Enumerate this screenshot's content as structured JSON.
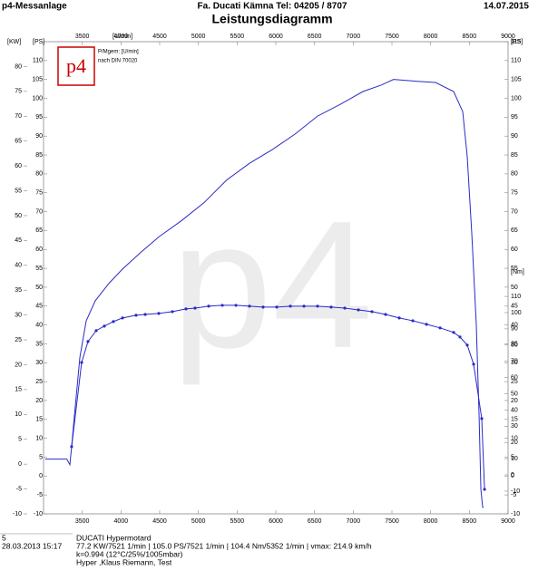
{
  "header": {
    "left": "p4-Messanlage",
    "center": "Fa. Ducati Kämna Tel: 04205 / 8707",
    "right": "14.07.2015"
  },
  "chart_data": {
    "type": "line",
    "title": "Leistungsdiagramm",
    "logo": "p4",
    "watermark": "p4",
    "legend_lines": [
      "P/Mgem: [U/min]",
      "nach DIN 70020"
    ],
    "xlabel": "[U/min]",
    "xlim": [
      3000,
      9000
    ],
    "xticks": [
      3500,
      4000,
      4500,
      5000,
      5500,
      6000,
      6500,
      7000,
      7500,
      8000,
      8500,
      9000
    ],
    "ylabel": "[PS]",
    "ylim": [
      -10,
      115
    ],
    "yticks": [
      -10,
      -5,
      0,
      5,
      10,
      15,
      20,
      25,
      30,
      35,
      40,
      45,
      50,
      55,
      60,
      65,
      70,
      75,
      80,
      85,
      90,
      95,
      100,
      105,
      110
    ],
    "y_right_label": "[PS]",
    "y_right_ticks": [
      -10,
      -5,
      0,
      5,
      10,
      15,
      20,
      25,
      30,
      35,
      40,
      45,
      50,
      55,
      60,
      65,
      70,
      75,
      80,
      85,
      90,
      95,
      100,
      105,
      110,
      115
    ],
    "kw_label": "[KW]",
    "kw_lim": [
      -10,
      85
    ],
    "kw_ticks": [
      -10,
      -5,
      0,
      5,
      10,
      15,
      20,
      25,
      30,
      35,
      40,
      45,
      50,
      55,
      60,
      65,
      70,
      75,
      80
    ],
    "y2label": "[Nm]",
    "y2lim": [
      -24,
      267
    ],
    "y2ticks": [
      -10,
      0,
      10,
      20,
      30,
      40,
      50,
      60,
      70,
      80,
      90,
      100,
      110
    ],
    "series": [
      {
        "name": "Leistung",
        "color": "#2a2ac8",
        "markers": false,
        "x": [
          3020,
          3300,
          3340,
          3363,
          3398,
          3469,
          3551,
          3668,
          3844,
          4020,
          4254,
          4488,
          4781,
          5074,
          5367,
          5660,
          5953,
          6246,
          6539,
          6832,
          7125,
          7360,
          7521,
          7828,
          8063,
          8297,
          8414,
          8473,
          8532,
          8590,
          8626,
          8649,
          8672,
          8684
        ],
        "values": [
          4.5,
          4.5,
          3,
          7.8,
          15.8,
          31.4,
          41.1,
          46.4,
          51,
          54.8,
          59.2,
          63.3,
          67.6,
          72.4,
          78.4,
          82.8,
          86.4,
          90.5,
          95.3,
          98.4,
          101.8,
          103.5,
          105,
          104.5,
          104.2,
          101.8,
          96.5,
          84.5,
          64,
          39.9,
          15.8,
          -3.5,
          -8.3,
          -8.3
        ]
      },
      {
        "name": "Drehmoment",
        "color": "#2a2ac8",
        "markers": true,
        "axis": "y2",
        "x": [
          3363,
          3492,
          3574,
          3680,
          3785,
          3902,
          4020,
          4195,
          4313,
          4488,
          4664,
          4840,
          4957,
          5133,
          5309,
          5485,
          5660,
          5836,
          6012,
          6188,
          6364,
          6539,
          6715,
          6891,
          7067,
          7242,
          7418,
          7594,
          7770,
          7946,
          8122,
          8297,
          8379,
          8473,
          8555,
          8660,
          8696
        ],
        "values": [
          17.4,
          69.3,
          82.2,
          88.9,
          91.7,
          94.5,
          96.7,
          98.4,
          98.9,
          99.5,
          100.6,
          102.3,
          102.8,
          104,
          104.5,
          104.5,
          104,
          103.4,
          103.4,
          104,
          104,
          104,
          103.4,
          102.8,
          101.7,
          100.6,
          98.9,
          96.7,
          95,
          92.8,
          90.6,
          87.8,
          85,
          80,
          68.2,
          34.7,
          -8.9
        ]
      }
    ]
  },
  "footer": {
    "run": "5",
    "datetime": "28.03.2013  15:17",
    "vehicle": "DUCATI Hypermotard",
    "summary": "77.2 KW/7521 1/min  |  105.0 PS/7521 1/min  |  104.4 Nm/5352 1/min  |  vmax: 214.9 km/h",
    "conditions": "k=0.994 (12°C/25%/1005mbar)",
    "operator": "Hyper ,Klaus Riemann, Test"
  }
}
